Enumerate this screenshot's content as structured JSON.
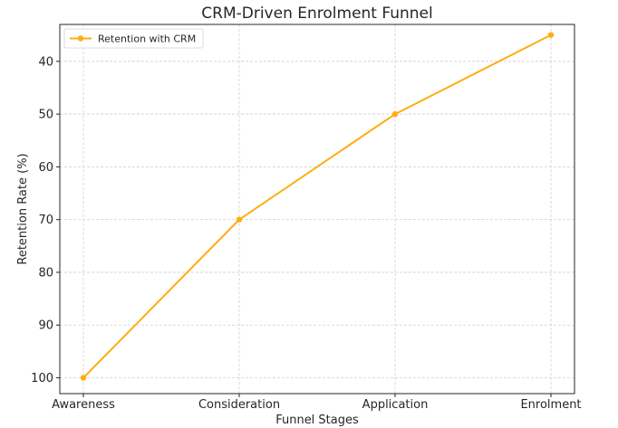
{
  "chart_data": {
    "type": "line",
    "title": "CRM-Driven Enrolment Funnel",
    "xlabel": "Funnel Stages",
    "ylabel": "Retention Rate (%)",
    "categories": [
      "Awareness",
      "Consideration",
      "Application",
      "Enrolment"
    ],
    "series": [
      {
        "name": "Retention with CRM",
        "values": [
          100,
          70,
          50,
          35
        ],
        "color": "#ffad0f"
      }
    ],
    "ylim": [
      103,
      33
    ],
    "y_inverted": true,
    "yticks": [
      40,
      50,
      60,
      70,
      80,
      90,
      100
    ],
    "grid": true,
    "legend": "top-left",
    "marker": "circle"
  }
}
